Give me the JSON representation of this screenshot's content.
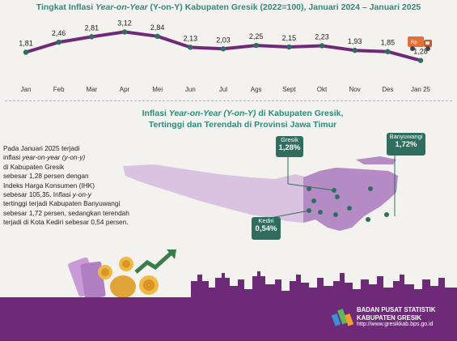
{
  "chart_data": {
    "type": "line",
    "title_prefix": "Tingkat Inflasi ",
    "title_italic": "Year-on-Year",
    "title_paren": " (Y-on-Y) ",
    "title_suffix": "Kabupaten Gresik (2022=100), Januari 2024 – Januari 2025",
    "categories": [
      "Jan",
      "Feb",
      "Mar",
      "Apr",
      "Mei",
      "Jun",
      "Jul",
      "Ags",
      "Sept",
      "Okt",
      "Nov",
      "Des",
      "Jan 25"
    ],
    "values": [
      1.81,
      2.46,
      2.81,
      3.12,
      2.84,
      2.13,
      2.03,
      2.25,
      2.15,
      2.23,
      1.93,
      1.85,
      1.28
    ],
    "value_labels": [
      "1,81",
      "2,46",
      "2,81",
      "3,12",
      "2,84",
      "2,13",
      "2,03",
      "2,25",
      "2,15",
      "2,23",
      "1,93",
      "1,85",
      "1,28"
    ],
    "ylim": [
      1.0,
      3.3
    ],
    "line_color": "#6e2a78",
    "marker_color": "#2f6e5f"
  },
  "map_section": {
    "title_line1_a": "Inflasi ",
    "title_line1_italic": "Year-on-Year (Y-on-Y)",
    "title_line1_b": " di Kabupaten Gresik,",
    "title_line2": "Tertinggi dan Terendah di Provinsi Jawa Timur",
    "summary": {
      "p1": "Pada Januari 2025 terjadi",
      "p2": "inflasi ",
      "p2_italic": "year-on-year (y-on-y)",
      "p3": "di Kabupaten Gresik",
      "p4": "sebesar 1,28 persen dengan",
      "p5": "Indeks Harga Konsumen (IHK)",
      "p6_a": "sebesar 105,35. Inflasi ",
      "p6_italic": "y-on-y",
      "p7": "tertinggi terjadi  Kabupaten Banyuwangi",
      "p8": "sebesar 1,72 persen, sedangkan terendah",
      "p9": "terjadi di Kota Kediri sebesar 0,54 persen."
    },
    "callouts": {
      "gresik": {
        "name": "Gresik",
        "value": "1,28%"
      },
      "banyuwangi": {
        "name": "Banyuwangi",
        "value": "1,72%"
      },
      "kediri": {
        "name": "Kediri",
        "value": "0,54%"
      }
    },
    "map_color": "#d9c3e0",
    "highlight_color": "#b58bc6"
  },
  "footer": {
    "org_line1": "BADAN PUSAT STATISTIK",
    "org_line2": "KABUPATEN GRESIK",
    "url": "http://www.gresikkab.bps.go.id",
    "color": "#6e2a78"
  }
}
